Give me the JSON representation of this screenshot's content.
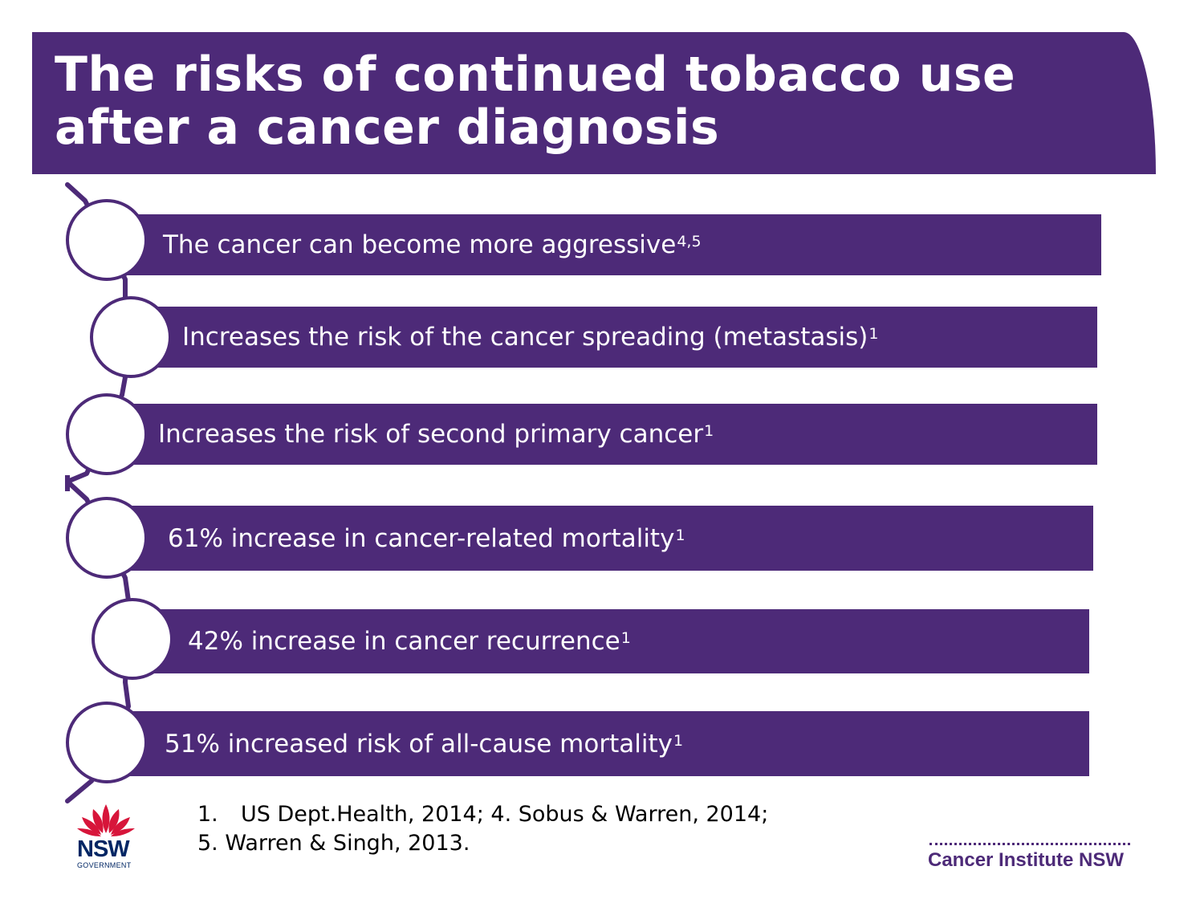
{
  "slide": {
    "title_line1": "The risks of continued tobacco use",
    "title_line2": "after a cancer diagnosis"
  },
  "risks": [
    {
      "text": "The cancer can become more aggressive",
      "ref": "4,5"
    },
    {
      "text": "Increases the risk of the cancer spreading (metastasis)",
      "ref": "1"
    },
    {
      "text": "Increases the risk of second primary cancer",
      "ref": "1"
    },
    {
      "text": "61% increase in cancer-related mortality",
      "ref": "1"
    },
    {
      "text": "42% increase in cancer recurrence",
      "ref": "1"
    },
    {
      "text": "51% increased risk of all-cause mortality",
      "ref": "1"
    }
  ],
  "references": {
    "line1_number": "1.",
    "line1_text": "US Dept.Health, 2014; 4. Sobus & Warren, 2014;",
    "line2_text": "5. Warren & Singh, 2013."
  },
  "logos": {
    "nsw_word": "NSW",
    "nsw_sub": "GOVERNMENT",
    "institute": "Cancer Institute NSW"
  },
  "colors": {
    "brand_purple": "#4d2a78",
    "nsw_blue": "#002664",
    "waratah_red": "#d7153a"
  }
}
